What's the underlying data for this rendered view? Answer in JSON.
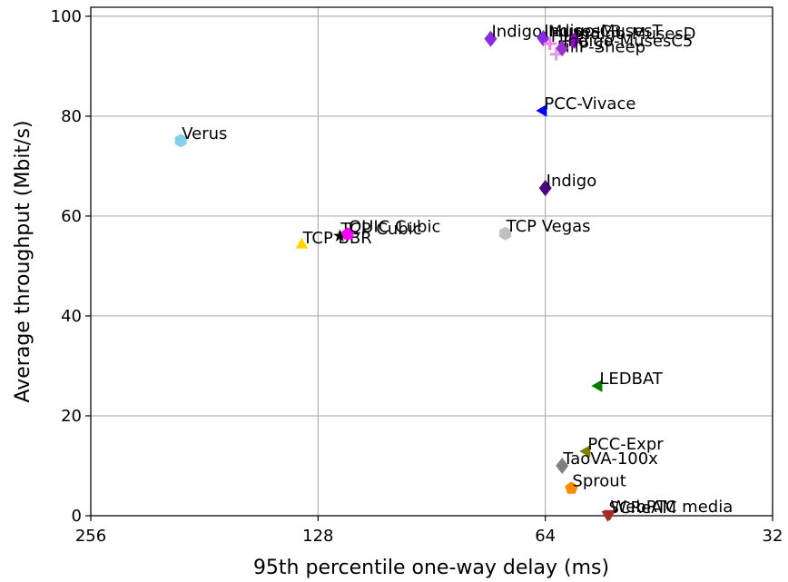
{
  "chart_data": {
    "type": "scatter",
    "x_label": "95th percentile one-way delay (ms)",
    "y_label": "Average throughput (Mbit/s)",
    "xscale": "log",
    "xlim": [
      256,
      32
    ],
    "xticks": [
      256,
      128,
      64,
      32
    ],
    "ylim": [
      0,
      101.8
    ],
    "yticks": [
      0,
      20,
      40,
      60,
      80,
      100
    ],
    "grid": true,
    "series": [
      {
        "name": "Verus",
        "color": "#87ceeb",
        "marker": "hexagon",
        "x": [
          194.5
        ],
        "values": [
          75.1
        ]
      },
      {
        "name": "TCP BBR",
        "color": "#ffd700",
        "marker": "triangle-up",
        "x": [
          134.5
        ],
        "values": [
          54.2
        ]
      },
      {
        "name": "TCP Cubic",
        "color": "#000000",
        "marker": "star",
        "x": [
          119.8
        ],
        "values": [
          56.0
        ]
      },
      {
        "name": "QUIC Cubic",
        "color": "#ff00ff",
        "marker": "pentagon",
        "x": [
          116.9
        ],
        "values": [
          56.4
        ]
      },
      {
        "name": "TCP Vegas",
        "color": "#c0c0c0",
        "marker": "hexagon",
        "x": [
          72.3
        ],
        "values": [
          56.5
        ]
      },
      {
        "name": "PCC-Vivace",
        "color": "#0000ff",
        "marker": "triangle-left",
        "x": [
          64.4
        ],
        "values": [
          81.1
        ]
      },
      {
        "name": "Indigo",
        "color": "#4b0082",
        "marker": "diamond",
        "x": [
          64.0
        ],
        "values": [
          65.6
        ]
      },
      {
        "name": "Indigo-MusesC3",
        "color": "#8a2be2",
        "marker": "diamond",
        "x": [
          75.6
        ],
        "values": [
          95.5
        ]
      },
      {
        "name": "Indigo-MusesT",
        "color": "#8a2be2",
        "marker": "diamond",
        "x": [
          64.4
        ],
        "values": [
          95.6
        ]
      },
      {
        "name": "FillP",
        "color": "#ee82ee",
        "marker": "plus",
        "x": [
          63.1
        ],
        "values": [
          94.5
        ]
      },
      {
        "name": "FillP-Sheep",
        "color": "#dda0dd",
        "marker": "plus",
        "x": [
          61.9
        ],
        "values": [
          92.4
        ]
      },
      {
        "name": "Indigo-MusesD",
        "color": "#9400d3",
        "marker": "diamond",
        "x": [
          58.6
        ],
        "values": [
          95.1
        ]
      },
      {
        "name": "Indigo-MusesC5",
        "color": "#9932cc",
        "marker": "diamond",
        "x": [
          60.8
        ],
        "values": [
          93.6
        ]
      },
      {
        "name": "LEDBAT",
        "color": "#008000",
        "marker": "triangle-left",
        "x": [
          54.4
        ],
        "values": [
          26.0
        ]
      },
      {
        "name": "PCC-Expr",
        "color": "#808000",
        "marker": "triangle-left",
        "x": [
          56.4
        ],
        "values": [
          12.9
        ]
      },
      {
        "name": "TaoVA-100x",
        "color": "#808080",
        "marker": "diamond",
        "x": [
          60.8
        ],
        "values": [
          10.0
        ]
      },
      {
        "name": "Sprout",
        "color": "#ff8c00",
        "marker": "pentagon",
        "x": [
          59.1
        ],
        "values": [
          5.5
        ]
      },
      {
        "name": "SCReAM",
        "color": "#a52a2a",
        "marker": "triangle-down",
        "x": [
          52.9
        ],
        "values": [
          0.2
        ]
      },
      {
        "name": "WebRTC media",
        "color": "#a52a2a",
        "marker": "triangle-down",
        "x": [
          52.6
        ],
        "values": [
          0.4
        ]
      }
    ]
  }
}
